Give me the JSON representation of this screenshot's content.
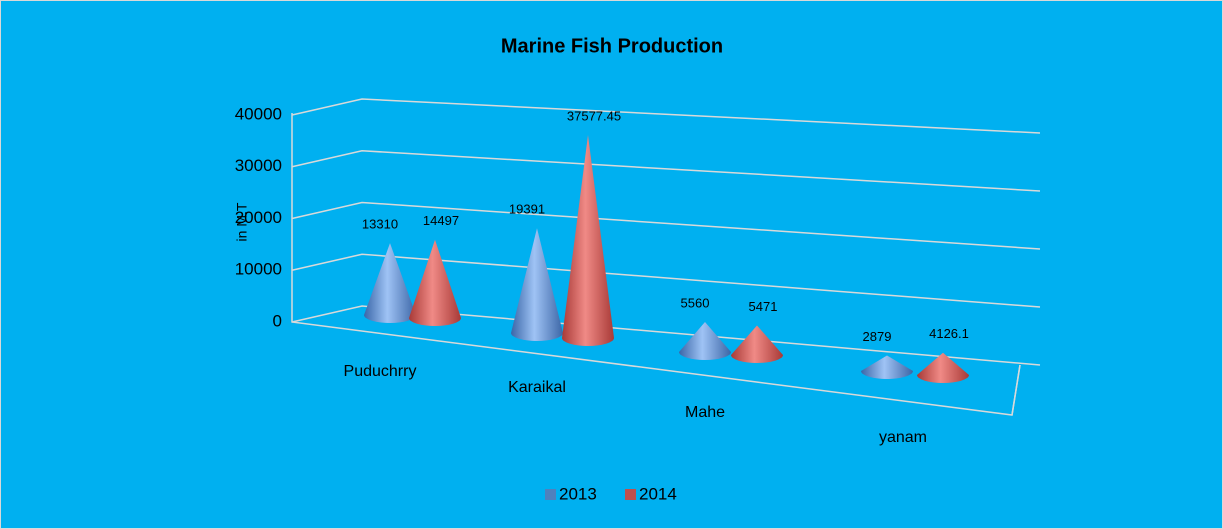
{
  "chart_data": {
    "type": "cone3d",
    "title": "Marine Fish Production",
    "y_axis_label": "in M.T",
    "categories": [
      "Puduchrry",
      "Karaikal",
      "Mahe",
      "yanam"
    ],
    "series": [
      {
        "name": "2013",
        "color": "#4f81bd",
        "values": [
          13310,
          19391,
          5560,
          2879
        ]
      },
      {
        "name": "2014",
        "color": "#c0504d",
        "values": [
          14497,
          37577.45,
          5471,
          4126.1
        ]
      }
    ],
    "ylim": [
      0,
      40000
    ],
    "yticks": [
      0,
      10000,
      20000,
      30000,
      40000
    ],
    "grid": true,
    "legend": "bottom"
  }
}
